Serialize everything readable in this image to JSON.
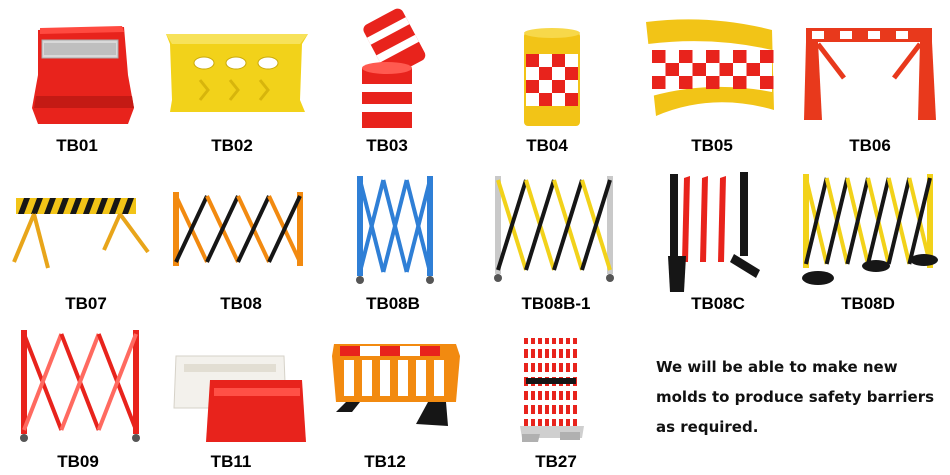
{
  "products": [
    {
      "code": "TB01"
    },
    {
      "code": "TB02"
    },
    {
      "code": "TB03"
    },
    {
      "code": "TB04"
    },
    {
      "code": "TB05"
    },
    {
      "code": "TB06"
    },
    {
      "code": "TB07"
    },
    {
      "code": "TB08"
    },
    {
      "code": "TB08B"
    },
    {
      "code": "TB08B-1"
    },
    {
      "code": "TB08C"
    },
    {
      "code": "TB08D"
    },
    {
      "code": "TB09"
    },
    {
      "code": "TB11"
    },
    {
      "code": "TB12"
    },
    {
      "code": "TB27"
    }
  ],
  "note": {
    "lines": [
      "We will be able to make new",
      "molds to produce safety barriers",
      "as required."
    ]
  },
  "colors": {
    "red": "#e8231c",
    "yellow": "#f2d21a",
    "orange": "#f28a10",
    "blue": "#2f7fd6",
    "black": "#161616",
    "white": "#ffffff"
  }
}
